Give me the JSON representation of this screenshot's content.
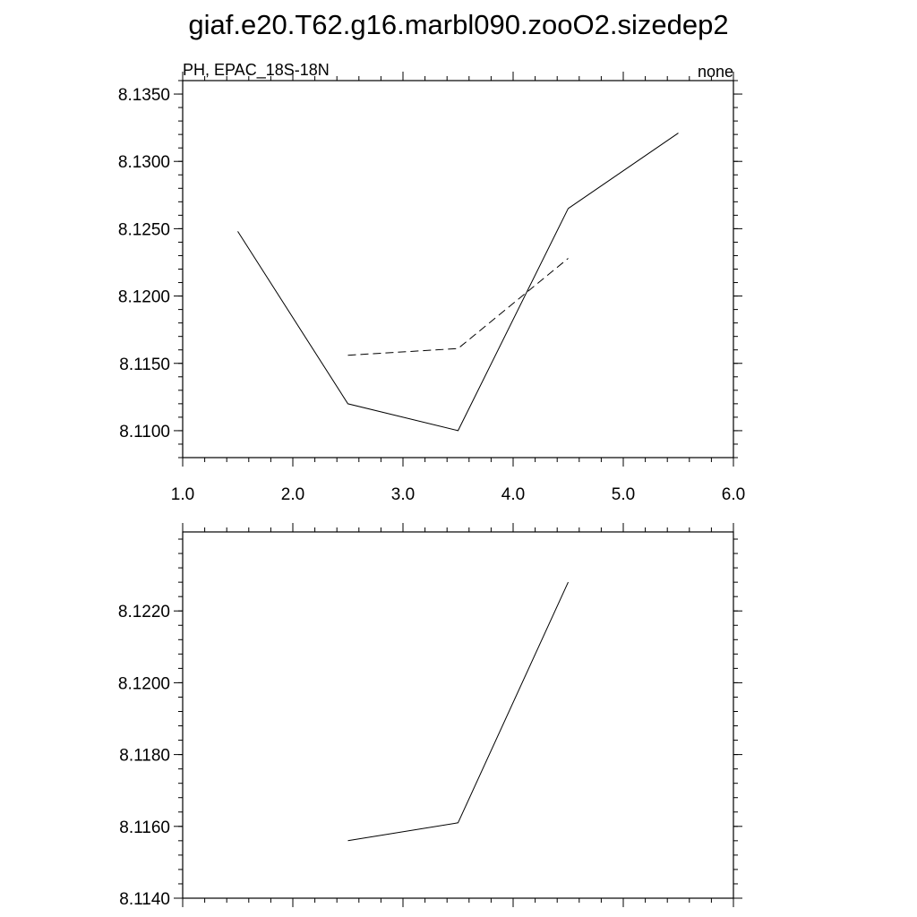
{
  "title": "giaf.e20.T62.g16.marbl090.zooO2.sizedep2",
  "chart_data": [
    {
      "type": "line",
      "left_string": "PH, EPAC_18S-18N",
      "right_string": "none",
      "xlim": [
        1.0,
        6.0
      ],
      "ylim": [
        8.108,
        8.136
      ],
      "x_ticks": [
        1.0,
        2.0,
        3.0,
        4.0,
        5.0,
        6.0
      ],
      "x_tick_labels": [
        "1.0",
        "2.0",
        "3.0",
        "4.0",
        "5.0",
        "6.0"
      ],
      "y_ticks": [
        8.11,
        8.115,
        8.12,
        8.125,
        8.13,
        8.135
      ],
      "y_tick_labels": [
        "8.1100",
        "8.1150",
        "8.1200",
        "8.1250",
        "8.1300",
        "8.1350"
      ],
      "grid": false,
      "series": [
        {
          "style": "solid",
          "color": "#000000",
          "x": [
            1.5,
            2.5,
            3.5,
            4.5,
            5.5
          ],
          "y": [
            8.1248,
            8.112,
            8.11,
            8.1265,
            8.1321
          ]
        },
        {
          "style": "dashed",
          "color": "#000000",
          "x": [
            2.5,
            3.5,
            4.5
          ],
          "y": [
            8.1156,
            8.1161,
            8.1228
          ]
        }
      ]
    },
    {
      "type": "line",
      "xlim": [
        1.0,
        6.0
      ],
      "ylim": [
        8.114,
        8.1242
      ],
      "x_ticks": [
        1.0,
        2.0,
        3.0,
        4.0,
        5.0,
        6.0
      ],
      "y_ticks": [
        8.114,
        8.116,
        8.118,
        8.12,
        8.122
      ],
      "y_tick_labels": [
        "8.1140",
        "8.1160",
        "8.1180",
        "8.1200",
        "8.1220"
      ],
      "grid": false,
      "series": [
        {
          "style": "solid",
          "color": "#000000",
          "x": [
            2.5,
            3.5,
            4.5
          ],
          "y": [
            8.1156,
            8.1161,
            8.1228
          ]
        }
      ]
    }
  ]
}
